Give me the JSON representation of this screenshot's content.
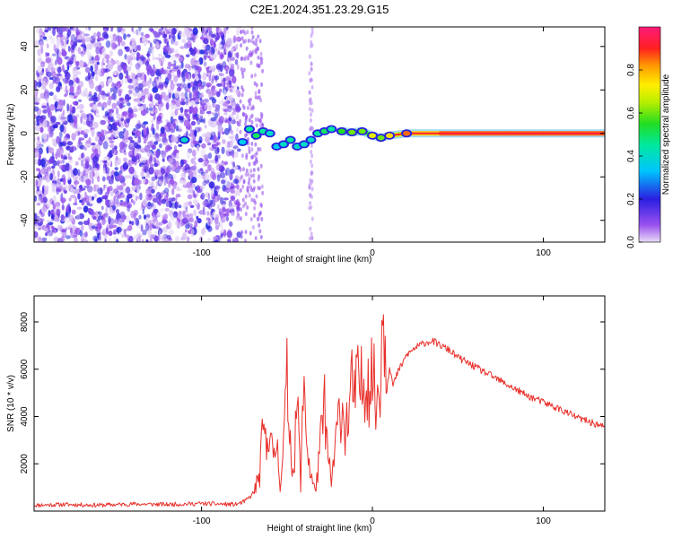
{
  "title": "C2E1.2024.351.23.29.G15",
  "colors": {
    "line": "#e8302a",
    "axis": "#000000",
    "background": "#ffffff"
  },
  "chart_data": [
    {
      "type": "heatmap",
      "xlabel": "Height of straight line (km)",
      "ylabel": "Frequency (Hz)",
      "xlim": [
        -198,
        136
      ],
      "ylim": [
        -50,
        49
      ],
      "xticks": [
        -100,
        0,
        100
      ],
      "xtick_labels": [
        "-100",
        "0",
        "100"
      ],
      "yticks": [
        -40,
        -20,
        0,
        20,
        40
      ],
      "ytick_labels": [
        "-40",
        "-20",
        "0",
        "20",
        "40"
      ],
      "colorbar": {
        "label": "Normalized spectral amplitude",
        "range": [
          0,
          1
        ],
        "ticks": [
          0,
          0.2,
          0.4,
          0.6,
          0.8
        ],
        "tick_labels": [
          "0.0",
          "0.2",
          "0.4",
          "0.6",
          "0.8"
        ],
        "colormap": "rainbow"
      },
      "noise_region_x": [
        -198,
        -78
      ],
      "signal_track": [
        {
          "x": -110,
          "y": -3,
          "amp": 0.4
        },
        {
          "x": -76,
          "y": -4,
          "amp": 0.35
        },
        {
          "x": -72,
          "y": 2,
          "amp": 0.45
        },
        {
          "x": -68,
          "y": -1,
          "amp": 0.5
        },
        {
          "x": -64,
          "y": 1,
          "amp": 0.45
        },
        {
          "x": -60,
          "y": 0,
          "amp": 0.4
        },
        {
          "x": -56,
          "y": -6,
          "amp": 0.35
        },
        {
          "x": -52,
          "y": -5,
          "amp": 0.4
        },
        {
          "x": -48,
          "y": -3,
          "amp": 0.45
        },
        {
          "x": -44,
          "y": -6,
          "amp": 0.4
        },
        {
          "x": -40,
          "y": -5,
          "amp": 0.4
        },
        {
          "x": -36,
          "y": -3,
          "amp": 0.4
        },
        {
          "x": -32,
          "y": 0,
          "amp": 0.45
        },
        {
          "x": -28,
          "y": 1,
          "amp": 0.5
        },
        {
          "x": -24,
          "y": 2,
          "amp": 0.45
        },
        {
          "x": -18,
          "y": 1,
          "amp": 0.55
        },
        {
          "x": -12,
          "y": 0.5,
          "amp": 0.6
        },
        {
          "x": -6,
          "y": 1,
          "amp": 0.6
        },
        {
          "x": 0,
          "y": -1,
          "amp": 0.7
        },
        {
          "x": 5,
          "y": -2,
          "amp": 0.6
        },
        {
          "x": 10,
          "y": -1,
          "amp": 0.75
        },
        {
          "x": 20,
          "y": 0,
          "amp": 0.85
        },
        {
          "x": 40,
          "y": 0,
          "amp": 0.95
        },
        {
          "x": 60,
          "y": 0,
          "amp": 0.95
        },
        {
          "x": 80,
          "y": 0,
          "amp": 0.95
        },
        {
          "x": 100,
          "y": 0,
          "amp": 0.95
        },
        {
          "x": 120,
          "y": 0,
          "amp": 0.95
        },
        {
          "x": 136,
          "y": 0,
          "amp": 0.95
        }
      ]
    },
    {
      "type": "line",
      "xlabel": "Height of straight line (km)",
      "ylabel": "SNR (10 * v/v)",
      "xlim": [
        -198,
        136
      ],
      "ylim": [
        0,
        9100
      ],
      "xticks": [
        -100,
        0,
        100
      ],
      "xtick_labels": [
        "-100",
        "0",
        "100"
      ],
      "yticks": [
        2000,
        4000,
        6000,
        8000
      ],
      "ytick_labels": [
        "2000",
        "4000",
        "6000",
        "8000"
      ],
      "x": [
        -198,
        -180,
        -160,
        -140,
        -120,
        -100,
        -90,
        -80,
        -75,
        -70,
        -66,
        -64,
        -62,
        -60,
        -58,
        -56,
        -54,
        -52,
        -50,
        -48,
        -46,
        -44,
        -42,
        -40,
        -38,
        -36,
        -34,
        -32,
        -30,
        -28,
        -26,
        -24,
        -22,
        -20,
        -18,
        -16,
        -14,
        -12,
        -10,
        -8,
        -6,
        -4,
        -2,
        0,
        2,
        4,
        6,
        8,
        10,
        12,
        15,
        18,
        20,
        25,
        30,
        35,
        40,
        45,
        50,
        60,
        70,
        80,
        90,
        100,
        110,
        120,
        130,
        136
      ],
      "y": [
        250,
        280,
        250,
        300,
        280,
        320,
        300,
        280,
        400,
        700,
        1500,
        3500,
        2500,
        4200,
        1800,
        3000,
        1200,
        2800,
        5500,
        3000,
        1500,
        4800,
        1200,
        5800,
        2500,
        1500,
        900,
        1500,
        3200,
        4500,
        2200,
        1200,
        2500,
        3800,
        4600,
        3500,
        4000,
        5200,
        4800,
        5600,
        5100,
        6000,
        5400,
        6000,
        4500,
        5200,
        8500,
        7000,
        6200,
        5300,
        5900,
        6300,
        6600,
        6900,
        7100,
        7200,
        7000,
        6800,
        6500,
        6100,
        5700,
        5300,
        4900,
        4600,
        4300,
        3950,
        3700,
        3550
      ]
    }
  ]
}
